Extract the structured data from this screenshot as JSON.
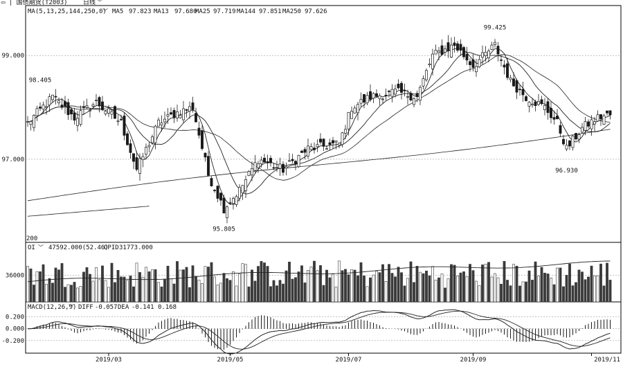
{
  "colors": {
    "background": "#ffffff",
    "frame": "#000000",
    "grid": "#9a9a9a",
    "candle": "#1a1a1a",
    "volume": "#3a3a3a",
    "ma_line": "#222222",
    "text": "#111111"
  },
  "toolbar": {
    "title_prefix": "▭ | 国债期货(T2003)",
    "period_label": "日线",
    "dropdown_icon": "chevron-down-icon"
  },
  "chart_data": [
    {
      "type": "candlestick",
      "panel": "price",
      "indicator_label": "MA(5,13,25,144,250,0)",
      "ma_values": [
        {
          "name": "MA5",
          "value": "97.823"
        },
        {
          "name": "MA13",
          "value": "97.680"
        },
        {
          "name": "MA25",
          "value": "97.719"
        },
        {
          "name": "MA144",
          "value": "97.851"
        },
        {
          "name": "MA250",
          "value": "97.626"
        }
      ],
      "y_ticks": [
        {
          "value": 99.0,
          "label": "99.000"
        },
        {
          "value": 97.0,
          "label": "97.000"
        }
      ],
      "ylim": [
        95.45,
        99.75
      ],
      "x_ticks": [
        "2019/03",
        "2019/05",
        "2019/07",
        "2019/09",
        "2019/11"
      ],
      "x_tick_index": [
        26,
        65,
        103,
        143,
        181
      ],
      "annotations": [
        {
          "label": "98.405",
          "index": 4,
          "value": 98.405
        },
        {
          "label": "99.425",
          "index": 150,
          "value": 99.425
        },
        {
          "label": "95.805",
          "index": 63,
          "value": 95.805
        },
        {
          "label": "96.930",
          "index": 173,
          "value": 96.93
        }
      ],
      "corner_label": "200",
      "closes_key": [
        {
          "i": 0,
          "v": 97.7
        },
        {
          "i": 8,
          "v": 98.2
        },
        {
          "i": 15,
          "v": 97.8
        },
        {
          "i": 22,
          "v": 98.1
        },
        {
          "i": 30,
          "v": 97.7
        },
        {
          "i": 35,
          "v": 96.8
        },
        {
          "i": 42,
          "v": 97.7
        },
        {
          "i": 48,
          "v": 97.9
        },
        {
          "i": 53,
          "v": 98.0
        },
        {
          "i": 58,
          "v": 96.7
        },
        {
          "i": 63,
          "v": 96.05
        },
        {
          "i": 68,
          "v": 96.4
        },
        {
          "i": 74,
          "v": 97.0
        },
        {
          "i": 82,
          "v": 96.8
        },
        {
          "i": 90,
          "v": 97.2
        },
        {
          "i": 100,
          "v": 97.3
        },
        {
          "i": 104,
          "v": 98.0
        },
        {
          "i": 110,
          "v": 98.2
        },
        {
          "i": 118,
          "v": 98.3
        },
        {
          "i": 125,
          "v": 98.2
        },
        {
          "i": 130,
          "v": 99.0
        },
        {
          "i": 137,
          "v": 99.2
        },
        {
          "i": 143,
          "v": 98.8
        },
        {
          "i": 150,
          "v": 99.2
        },
        {
          "i": 155,
          "v": 98.5
        },
        {
          "i": 160,
          "v": 98.2
        },
        {
          "i": 166,
          "v": 98.0
        },
        {
          "i": 170,
          "v": 97.7
        },
        {
          "i": 173,
          "v": 97.2
        },
        {
          "i": 178,
          "v": 97.6
        },
        {
          "i": 183,
          "v": 97.8
        },
        {
          "i": 186,
          "v": 97.85
        }
      ]
    },
    {
      "type": "bar",
      "panel": "open_interest",
      "indicator_label": "OI",
      "values_text": [
        {
          "name": "",
          "value": "47592.000(52.46)"
        },
        {
          "name": "OPID",
          "value": "31773.000"
        }
      ],
      "y_ticks": [
        {
          "value": 36000,
          "label": "36000"
        }
      ],
      "ylim": [
        15000,
        55000
      ]
    },
    {
      "type": "line",
      "panel": "macd",
      "indicator_label": "MACD(12,26,9)",
      "values_text": [
        {
          "name": "DIFF",
          "value": "-0.057"
        },
        {
          "name": "DEA",
          "value": "-0.141"
        },
        {
          "name": "",
          "value": "0.168"
        }
      ],
      "y_ticks": [
        {
          "value": 0.2,
          "label": "0.200"
        },
        {
          "value": 0.0,
          "label": "0.000"
        },
        {
          "value": -0.2,
          "label": "-0.200"
        }
      ],
      "ylim": [
        -0.4,
        0.3
      ]
    }
  ]
}
